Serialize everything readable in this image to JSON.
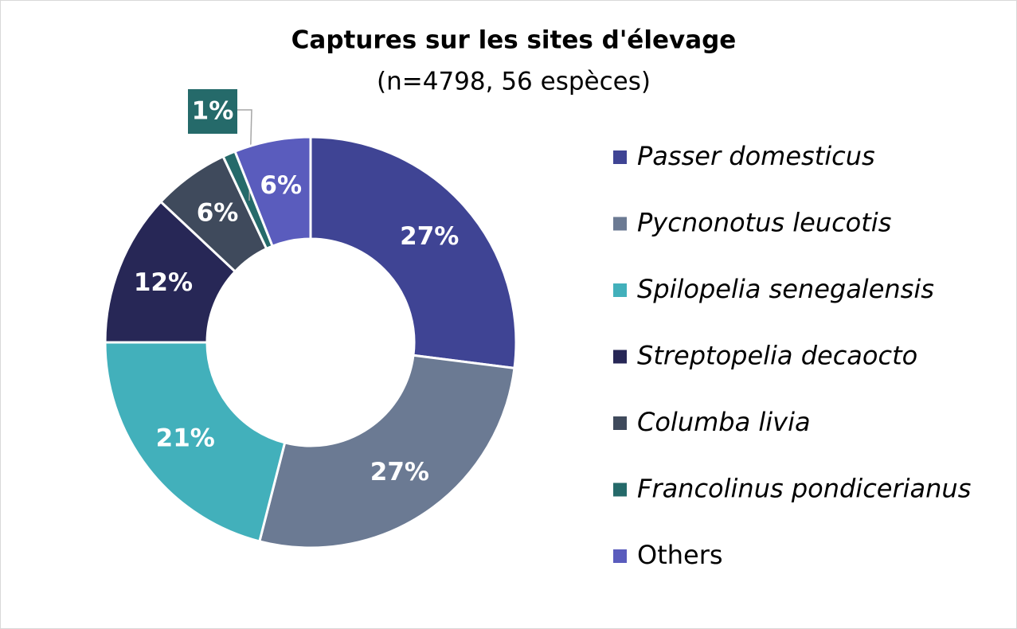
{
  "chart_data": {
    "type": "pie",
    "title": "Captures sur les sites d'élevage",
    "subtitle": "(n=4798, 56 espèces)",
    "categories": [
      "Passer domesticus",
      "Pycnonotus leucotis",
      "Spilopelia senegalensis",
      "Streptopelia decaocto",
      "Columba livia",
      "Francolinus pondicerianus",
      "Others"
    ],
    "values": [
      27,
      27,
      21,
      12,
      6,
      1,
      6
    ],
    "value_labels": [
      "27%",
      "27%",
      "21%",
      "12%",
      "6%",
      "1%",
      "6%"
    ],
    "colors": [
      "#3f4494",
      "#6b7a93",
      "#42b0bb",
      "#272756",
      "#3f4a5c",
      "#256a6a",
      "#5a5cbd"
    ],
    "donut": true,
    "legend": "right"
  }
}
